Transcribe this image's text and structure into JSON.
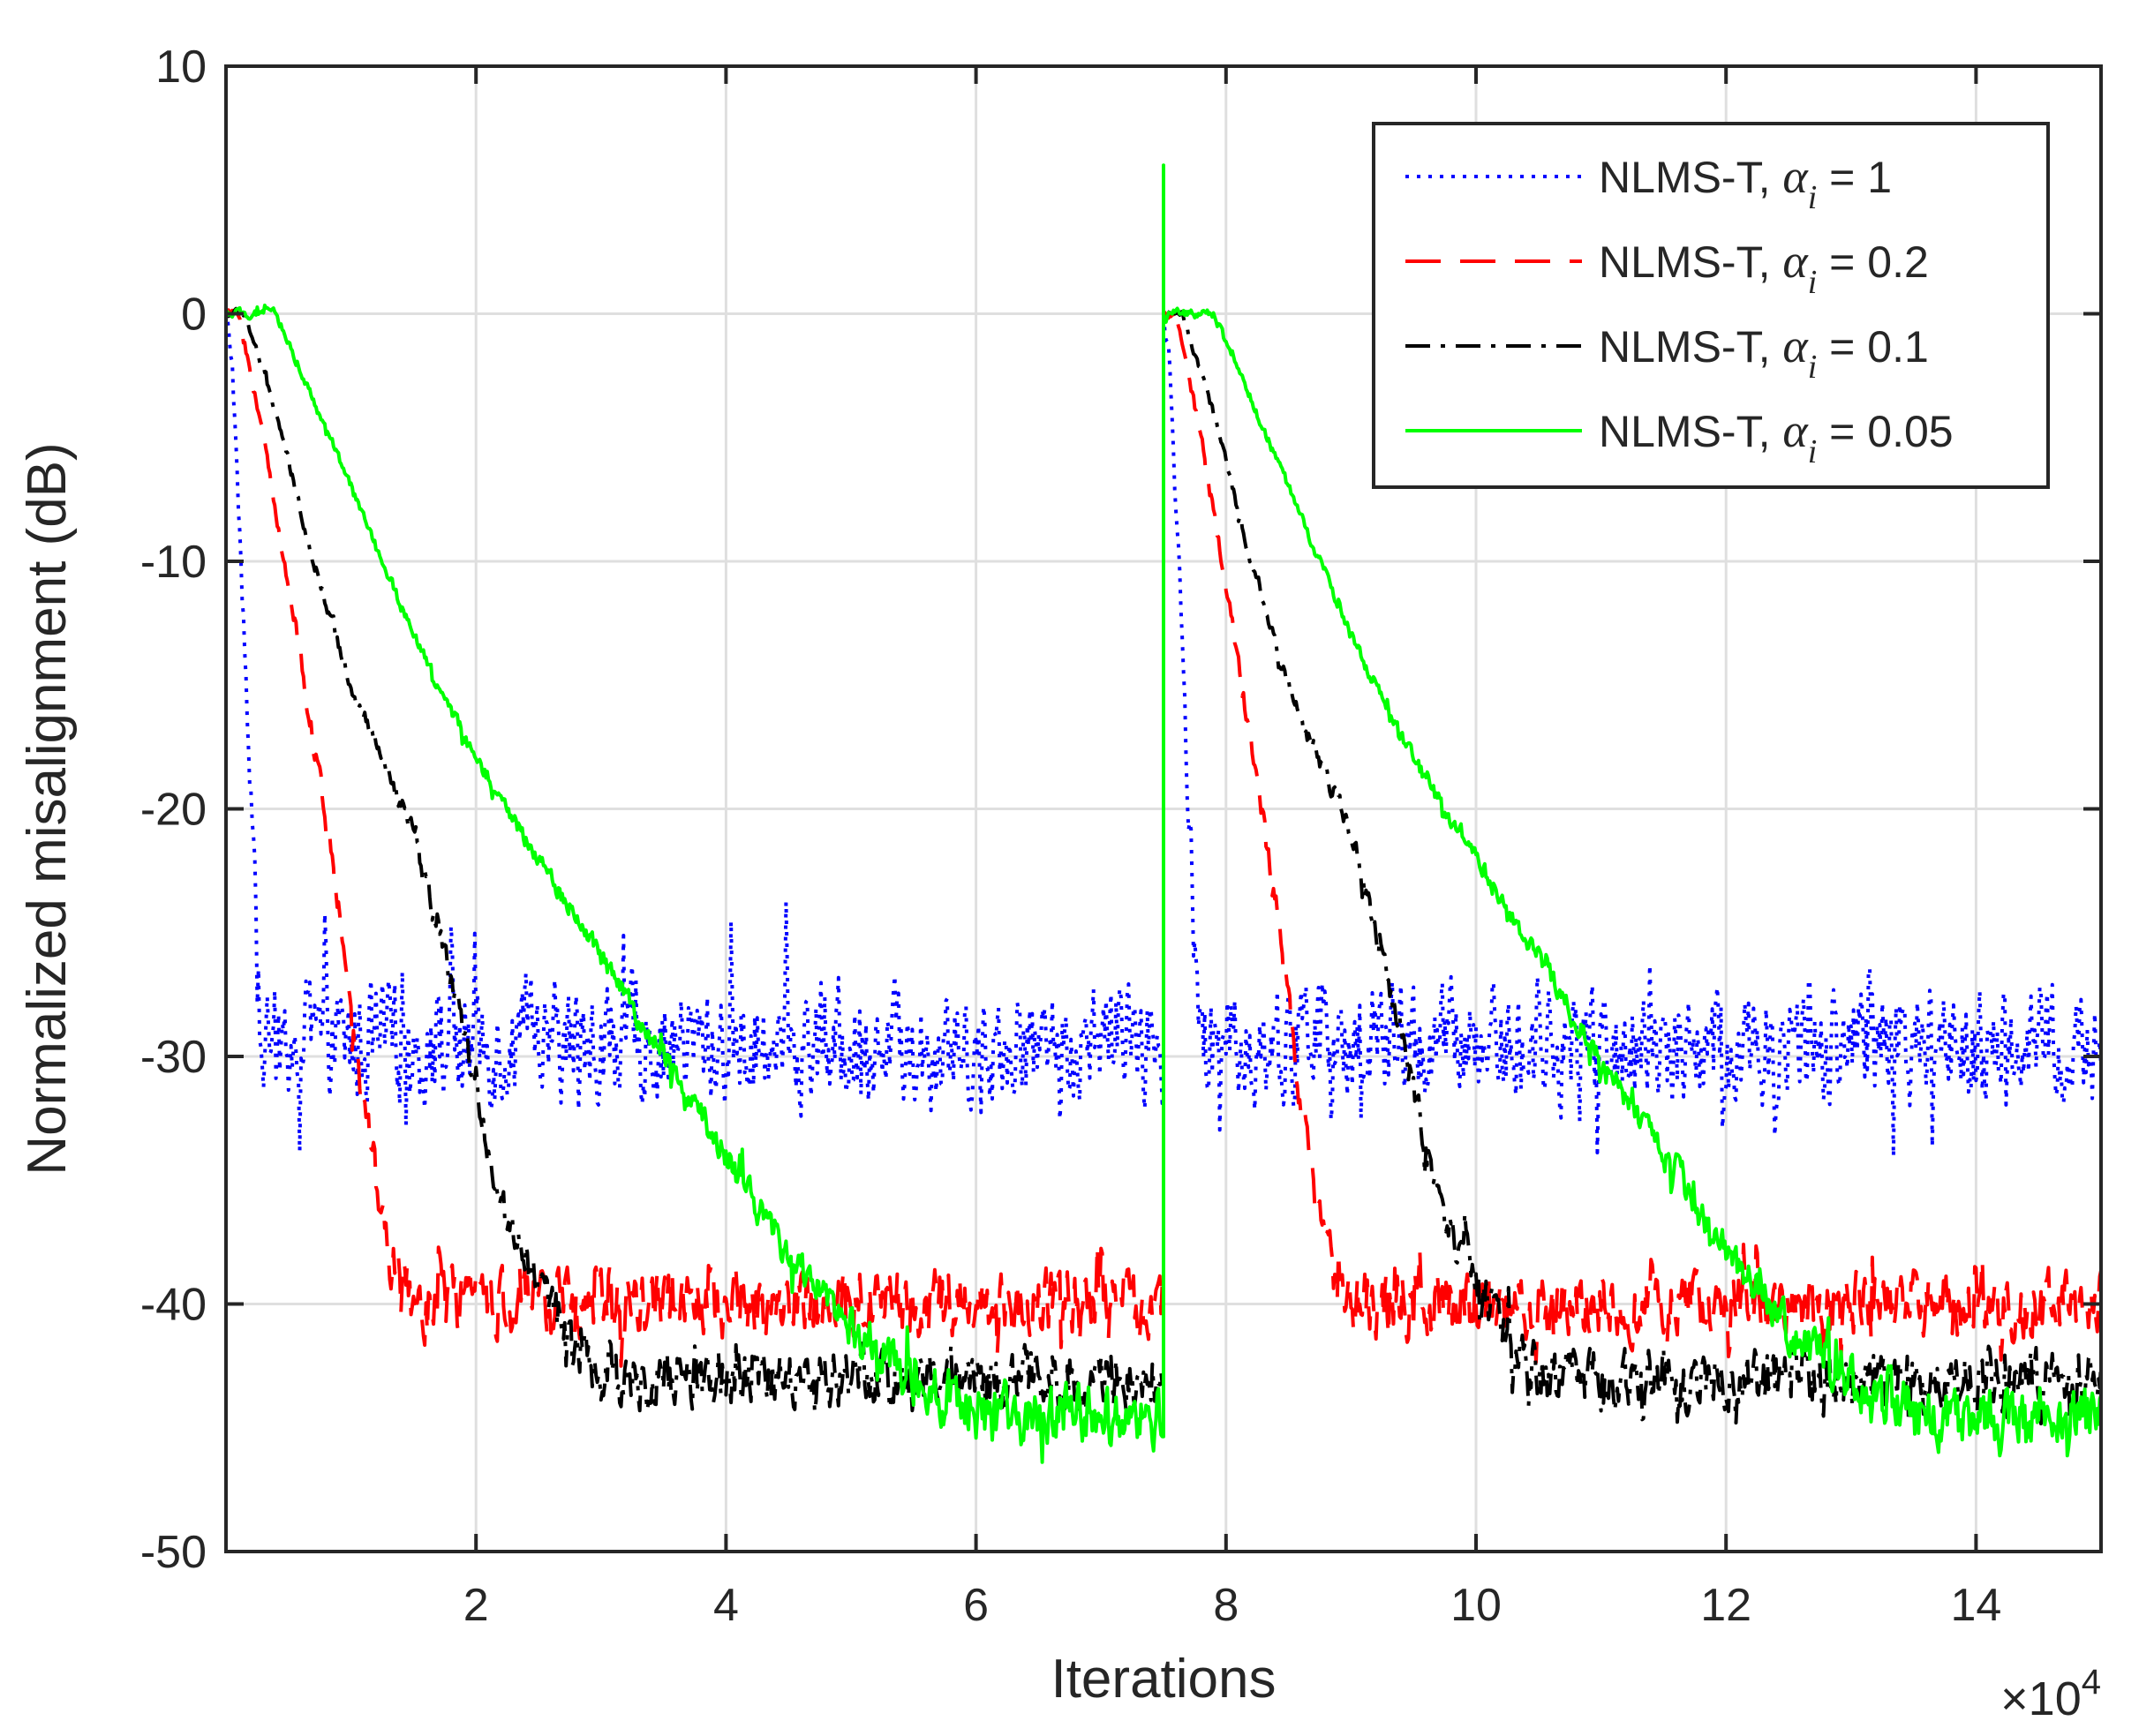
{
  "chart_data": {
    "type": "line",
    "xlabel": "Iterations",
    "x_multiplier_label": "×10",
    "x_multiplier_exp": "4",
    "ylabel": "Normalized misalignment (dB)",
    "xlim": [
      0,
      15
    ],
    "ylim": [
      -50,
      10
    ],
    "xticks": [
      2,
      4,
      6,
      8,
      10,
      12,
      14
    ],
    "yticks": [
      10,
      0,
      -10,
      -20,
      -30,
      -40,
      -50
    ],
    "grid": true,
    "legend_position": "top-right",
    "change_point": 7.5,
    "series": [
      {
        "name": "NLMS-T, αi = 1",
        "label_prefix": "NLMS-T, ",
        "alpha_symbol": "α",
        "alpha_sub": "i",
        "alpha_value": " = 1",
        "color": "#0000ff",
        "style": "dotted",
        "steady_state_db": -29.5,
        "noise_amplitude_db": 3.5,
        "convergence_profile": [
          [
            0,
            0
          ],
          [
            0.05,
            -2
          ],
          [
            0.12,
            -10
          ],
          [
            0.2,
            -20
          ],
          [
            0.28,
            -29.5
          ]
        ]
      },
      {
        "name": "NLMS-T, αi = 0.2",
        "label_prefix": "NLMS-T, ",
        "alpha_symbol": "α",
        "alpha_sub": "i",
        "alpha_value": " = 0.2",
        "color": "#ff0000",
        "style": "dashed",
        "steady_state_db": -40,
        "noise_amplitude_db": 2.0,
        "convergence_profile": [
          [
            0,
            0
          ],
          [
            0.1,
            0
          ],
          [
            0.3,
            -5
          ],
          [
            0.6,
            -14
          ],
          [
            0.9,
            -24
          ],
          [
            1.1,
            -32
          ],
          [
            1.3,
            -38
          ],
          [
            1.5,
            -40
          ]
        ]
      },
      {
        "name": "NLMS-T, αi = 0.1",
        "label_prefix": "NLMS-T, ",
        "alpha_symbol": "α",
        "alpha_sub": "i",
        "alpha_value": " = 0.1",
        "color": "#000000",
        "style": "dashdot",
        "steady_state_db": -43,
        "noise_amplitude_db": 1.8,
        "convergence_profile": [
          [
            0,
            0
          ],
          [
            0.15,
            0
          ],
          [
            0.4,
            -4
          ],
          [
            0.7,
            -10
          ],
          [
            1.0,
            -15
          ],
          [
            1.5,
            -21
          ],
          [
            1.9,
            -29
          ],
          [
            2.2,
            -36
          ],
          [
            2.6,
            -40
          ],
          [
            3.0,
            -43
          ]
        ]
      },
      {
        "name": "NLMS-T, αi = 0.05",
        "label_prefix": "NLMS-T, ",
        "alpha_symbol": "α",
        "alpha_sub": "i",
        "alpha_value": " = 0.05",
        "color": "#00ff00",
        "style": "solid",
        "steady_state_db": -44.5,
        "noise_amplitude_db": 1.8,
        "convergence_profile": [
          [
            0,
            0
          ],
          [
            0.4,
            0
          ],
          [
            1.0,
            -7
          ],
          [
            1.5,
            -13
          ],
          [
            2.0,
            -18
          ],
          [
            2.5,
            -22
          ],
          [
            3.0,
            -26
          ],
          [
            3.5,
            -30
          ],
          [
            4.0,
            -34
          ],
          [
            4.5,
            -38
          ],
          [
            5.0,
            -41
          ],
          [
            5.5,
            -43
          ],
          [
            6.0,
            -44.5
          ]
        ]
      }
    ]
  }
}
